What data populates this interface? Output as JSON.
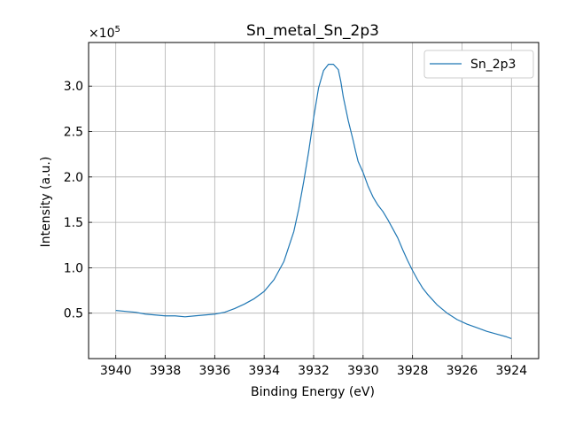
{
  "chart_data": {
    "type": "line",
    "title": "Sn_metal_Sn_2p3",
    "xlabel": "Binding Energy (eV)",
    "ylabel": "Intensity (a.u.)",
    "y_multiplier_label": "×10",
    "y_multiplier_exponent": "5",
    "xlim": [
      3941.1,
      3922.9
    ],
    "ylim": [
      0.0,
      3.48
    ],
    "x_axis_reversed": true,
    "grid": true,
    "legend_position": "top-right",
    "x_ticks": [
      3940,
      3938,
      3936,
      3934,
      3932,
      3930,
      3928,
      3926,
      3924
    ],
    "x_tick_labels": [
      "3940",
      "3938",
      "3936",
      "3934",
      "3932",
      "3930",
      "3928",
      "3926",
      "3924"
    ],
    "y_ticks": [
      0.5,
      1.0,
      1.5,
      2.0,
      2.5,
      3.0
    ],
    "y_tick_labels": [
      "0.5",
      "1.0",
      "1.5",
      "2.0",
      "2.5",
      "3.0"
    ],
    "series": [
      {
        "name": "Sn_2p3",
        "color": "#1f77b4",
        "x": [
          3940.0,
          3939.6,
          3939.2,
          3938.8,
          3938.4,
          3938.0,
          3937.6,
          3937.2,
          3936.8,
          3936.4,
          3936.0,
          3935.6,
          3935.2,
          3934.8,
          3934.4,
          3934.0,
          3933.6,
          3933.2,
          3932.8,
          3932.6,
          3932.4,
          3932.2,
          3932.0,
          3931.8,
          3931.6,
          3931.4,
          3931.2,
          3931.0,
          3930.9,
          3930.8,
          3930.6,
          3930.4,
          3930.3,
          3930.2,
          3930.0,
          3929.8,
          3929.6,
          3929.4,
          3929.2,
          3929.0,
          3928.8,
          3928.6,
          3928.4,
          3928.2,
          3928.0,
          3927.8,
          3927.6,
          3927.4,
          3927.2,
          3927.0,
          3926.6,
          3926.2,
          3925.8,
          3925.4,
          3925.0,
          3924.6,
          3924.2,
          3924.0
        ],
        "values": [
          0.53,
          0.52,
          0.51,
          0.49,
          0.48,
          0.47,
          0.47,
          0.46,
          0.47,
          0.48,
          0.49,
          0.51,
          0.55,
          0.6,
          0.66,
          0.74,
          0.87,
          1.07,
          1.4,
          1.65,
          1.95,
          2.28,
          2.65,
          2.98,
          3.17,
          3.24,
          3.24,
          3.18,
          3.05,
          2.88,
          2.62,
          2.4,
          2.28,
          2.17,
          2.05,
          1.9,
          1.78,
          1.69,
          1.62,
          1.53,
          1.43,
          1.33,
          1.2,
          1.08,
          0.97,
          0.87,
          0.78,
          0.71,
          0.65,
          0.59,
          0.5,
          0.43,
          0.38,
          0.34,
          0.3,
          0.27,
          0.24,
          0.22
        ]
      }
    ]
  }
}
